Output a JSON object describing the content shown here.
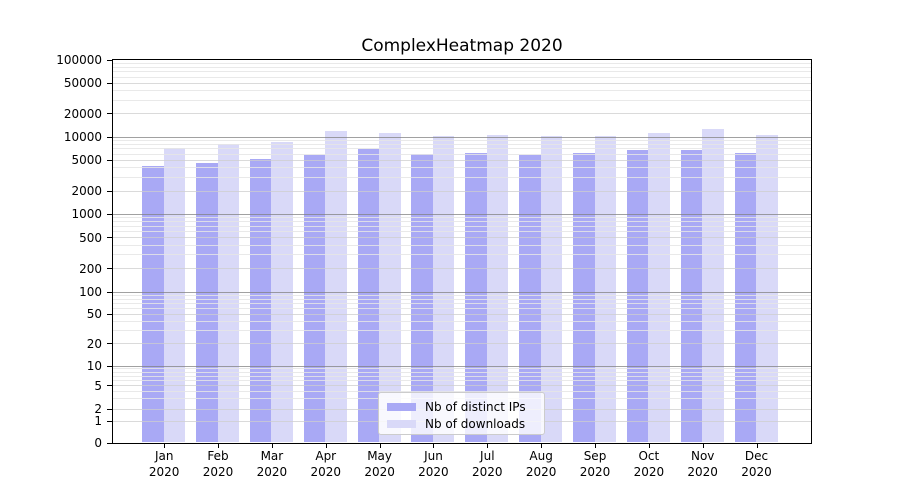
{
  "chart_data": {
    "type": "bar",
    "title": "ComplexHeatmap 2020",
    "year": "2020",
    "categories": [
      "Jan",
      "Feb",
      "Mar",
      "Apr",
      "May",
      "Jun",
      "Jul",
      "Aug",
      "Sep",
      "Oct",
      "Nov",
      "Dec"
    ],
    "x_tick_second_line": "2020",
    "series": [
      {
        "name": "Nb of distinct IPs",
        "color": "#a9a9f5",
        "values": [
          4100,
          4600,
          5100,
          5700,
          6800,
          5900,
          6200,
          5800,
          6100,
          6700,
          6600,
          6200
        ]
      },
      {
        "name": "Nb of downloads",
        "color": "#d9d9f8",
        "values": [
          7000,
          7900,
          8600,
          11900,
          11200,
          10200,
          10500,
          10200,
          10200,
          11100,
          12500,
          10600
        ]
      }
    ],
    "y_axis": {
      "scale": "symlog",
      "ticks": [
        0,
        1,
        2,
        5,
        10,
        20,
        50,
        100,
        200,
        500,
        1000,
        2000,
        5000,
        10000,
        20000,
        50000,
        100000
      ],
      "ylim": [
        0,
        100000
      ]
    },
    "xlabel": "",
    "ylabel": "",
    "legend": {
      "position": "lower-center-inside",
      "labels": [
        "Nb of distinct IPs",
        "Nb of downloads"
      ]
    },
    "grid": "both"
  },
  "colors": {
    "grid_decade": "rgba(130,130,130,0.75)",
    "grid_labeled": "rgba(205,205,205,0.75)",
    "grid_minor": "rgba(229,229,229,0.85)",
    "spine": "#000000"
  }
}
